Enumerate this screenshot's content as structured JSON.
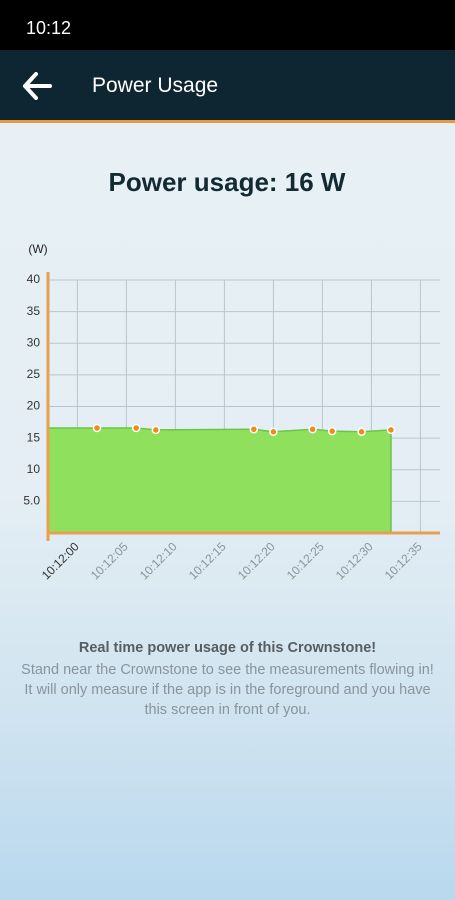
{
  "status_bar": {
    "time": "10:12"
  },
  "header": {
    "title": "Power Usage"
  },
  "chart_data": {
    "type": "area",
    "title": "Power usage: 16 W",
    "y_label": "(W)",
    "x": [
      "10:12:02",
      "10:12:06",
      "10:12:08",
      "10:12:18",
      "10:12:20",
      "10:12:24",
      "10:12:26",
      "10:12:29",
      "10:12:32"
    ],
    "values": [
      16.6,
      16.6,
      16.3,
      16.4,
      16.0,
      16.4,
      16.1,
      16.0,
      16.3
    ],
    "color": "#8fe05c",
    "point_color": "#f08a1e",
    "xlim": [
      "10:11:57",
      "10:12:37"
    ],
    "xticks": [
      "10:12:00",
      "10:12:05",
      "10:12:10",
      "10:12:15",
      "10:12:20",
      "10:12:25",
      "10:12:30",
      "10:12:35"
    ],
    "ylim": [
      0,
      40
    ],
    "yticks": [
      {
        "value": 5,
        "label": "5.0"
      },
      10,
      15,
      20,
      25,
      30,
      35,
      40
    ],
    "grid": true
  },
  "info": {
    "heading": "Real time power usage of this Crownstone!",
    "body": "Stand near the Crownstone to see the measurements flowing in! It will only measure if the app is in the foreground and you have this screen in front of you."
  }
}
